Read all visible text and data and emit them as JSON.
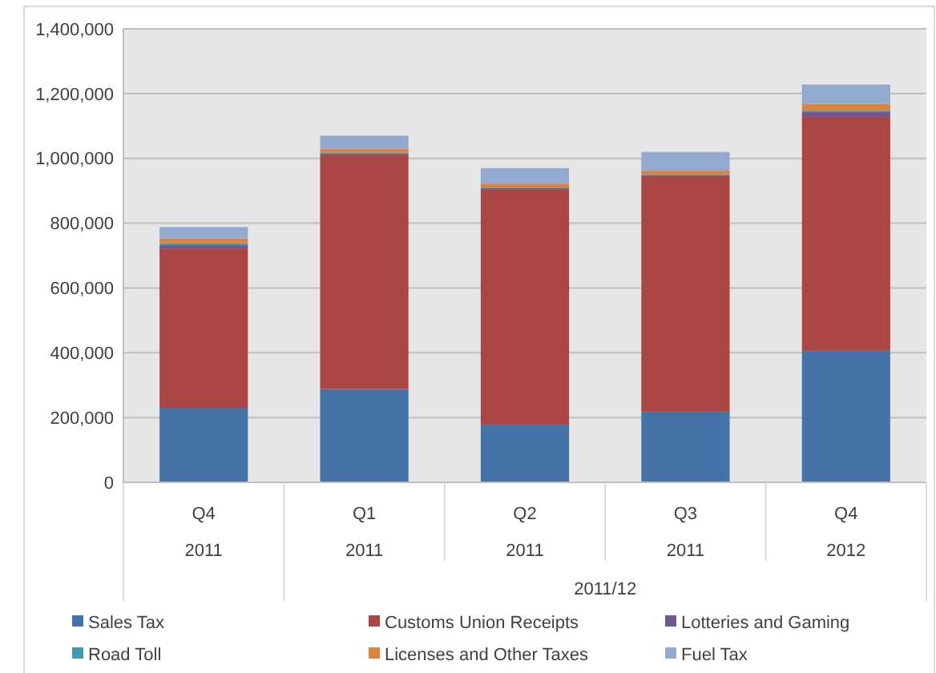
{
  "chart_data": {
    "type": "bar",
    "stacked": true,
    "categories": [
      "Q4\n2011",
      "Q1\n2011",
      "Q2\n2011",
      "Q3\n2011",
      "Q4\n2012"
    ],
    "annotations": [
      "2011/12"
    ],
    "series": [
      {
        "name": "Sales Tax",
        "color": "#4572a7",
        "values": [
          230000,
          288000,
          178000,
          218000,
          406000
        ]
      },
      {
        "name": "Customs Union Receipts",
        "color": "#aa4643",
        "values": [
          492000,
          724000,
          727000,
          727000,
          722000
        ]
      },
      {
        "name": "Lotteries and Gaming",
        "color": "#71588f",
        "values": [
          10000,
          4000,
          3000,
          3000,
          15000
        ]
      },
      {
        "name": "Road Toll",
        "color": "#4198af",
        "values": [
          6000,
          2000,
          2000,
          2000,
          5000
        ]
      },
      {
        "name": "Licenses and Other Taxes",
        "color": "#db843d",
        "values": [
          15000,
          12000,
          12000,
          12000,
          20000
        ]
      },
      {
        "name": "Fuel Tax",
        "color": "#93a9cf",
        "values": [
          35000,
          40000,
          48000,
          58000,
          60000
        ]
      }
    ],
    "ylim": [
      0,
      1400000
    ],
    "yticks": [
      {
        "value": 0,
        "label": "0"
      },
      {
        "value": 200000,
        "label": "200,000"
      },
      {
        "value": 400000,
        "label": "400,000"
      },
      {
        "value": 600000,
        "label": "600,000"
      },
      {
        "value": 800000,
        "label": "800,000"
      },
      {
        "value": 1000000,
        "label": "1,000,000"
      },
      {
        "value": 1200000,
        "label": "1,200,000"
      },
      {
        "value": 1400000,
        "label": "1,400,000"
      }
    ],
    "grid": "y",
    "legend": "bottom"
  }
}
